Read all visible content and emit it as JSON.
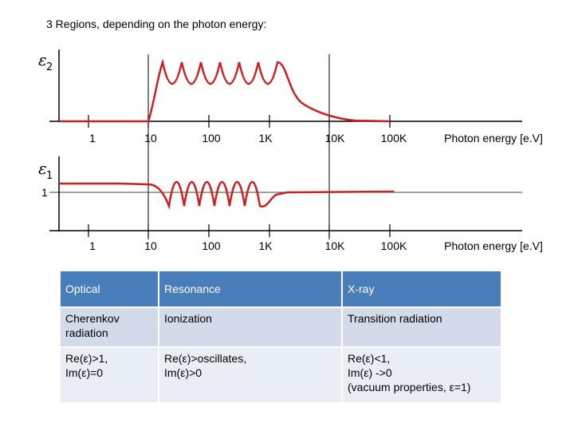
{
  "title": "3 Regions, depending on the photon energy:",
  "top_plot": {
    "ylabel": "ε",
    "ylabel_sub": "2",
    "ticks": [
      "1",
      "10",
      "100",
      "1K",
      "10K",
      "100K"
    ],
    "xlabel": "Photon energy [e.V]"
  },
  "bottom_plot": {
    "ylabel": "ε",
    "ylabel_sub": "1",
    "ref_label": "1",
    "ticks": [
      "1",
      "10",
      "100",
      "1K",
      "10K",
      "100K"
    ],
    "xlabel": "Photon energy [e.V]"
  },
  "colors": {
    "curve": "#cc1f1f",
    "axis": "#000000",
    "guide": "#000000",
    "header": "#4a7ebb",
    "row1": "#d3dbea",
    "row2": "#e9edf4"
  },
  "table": {
    "header": [
      "Optical",
      "Resonance",
      "X-ray"
    ],
    "rows": [
      [
        "Cherenkov\nradiation",
        "Ionization",
        "Transition radiation"
      ],
      [
        "Re(ε)>1,\nIm(ε)=0",
        "Re(ε)>oscillates,\nIm(ε)>0",
        "Re(ε)<1,\nIm(ε) ->0\n(vacuum properties, ε=1)"
      ]
    ]
  }
}
